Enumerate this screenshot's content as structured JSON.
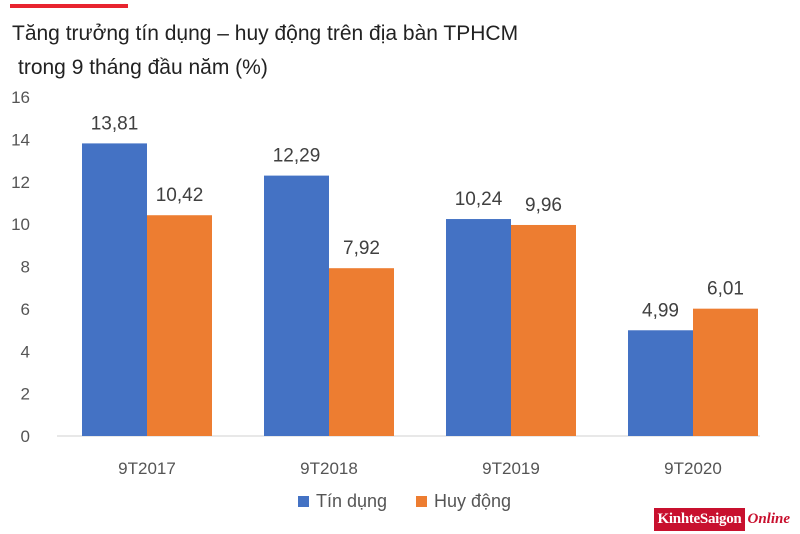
{
  "title_line1": "Tăng trưởng tín dụng – huy động trên địa bàn TPHCM",
  "title_line2": "trong 9 tháng đầu năm (%)",
  "accent_color": "#e8242f",
  "logo": {
    "part1": "KinhteSaigon",
    "part2": "Online",
    "color": "#c8102e"
  },
  "chart_data": {
    "type": "bar",
    "categories": [
      "9T2017",
      "9T2018",
      "9T2019",
      "9T2020"
    ],
    "series": [
      {
        "name": "Tín dụng",
        "values": [
          13.81,
          12.29,
          10.24,
          4.99
        ],
        "labels": [
          "13,81",
          "12,29",
          "10,24",
          "4,99"
        ],
        "color": "#4472c4"
      },
      {
        "name": "Huy động",
        "values": [
          10.42,
          7.92,
          9.96,
          6.01
        ],
        "labels": [
          "10,42",
          "7,92",
          "9,96",
          "6,01"
        ],
        "color": "#ed7d31"
      }
    ],
    "ylim": [
      0,
      16
    ],
    "yticks": [
      0,
      2,
      4,
      6,
      8,
      10,
      12,
      14,
      16
    ],
    "grid": false,
    "legend": "bottom"
  }
}
